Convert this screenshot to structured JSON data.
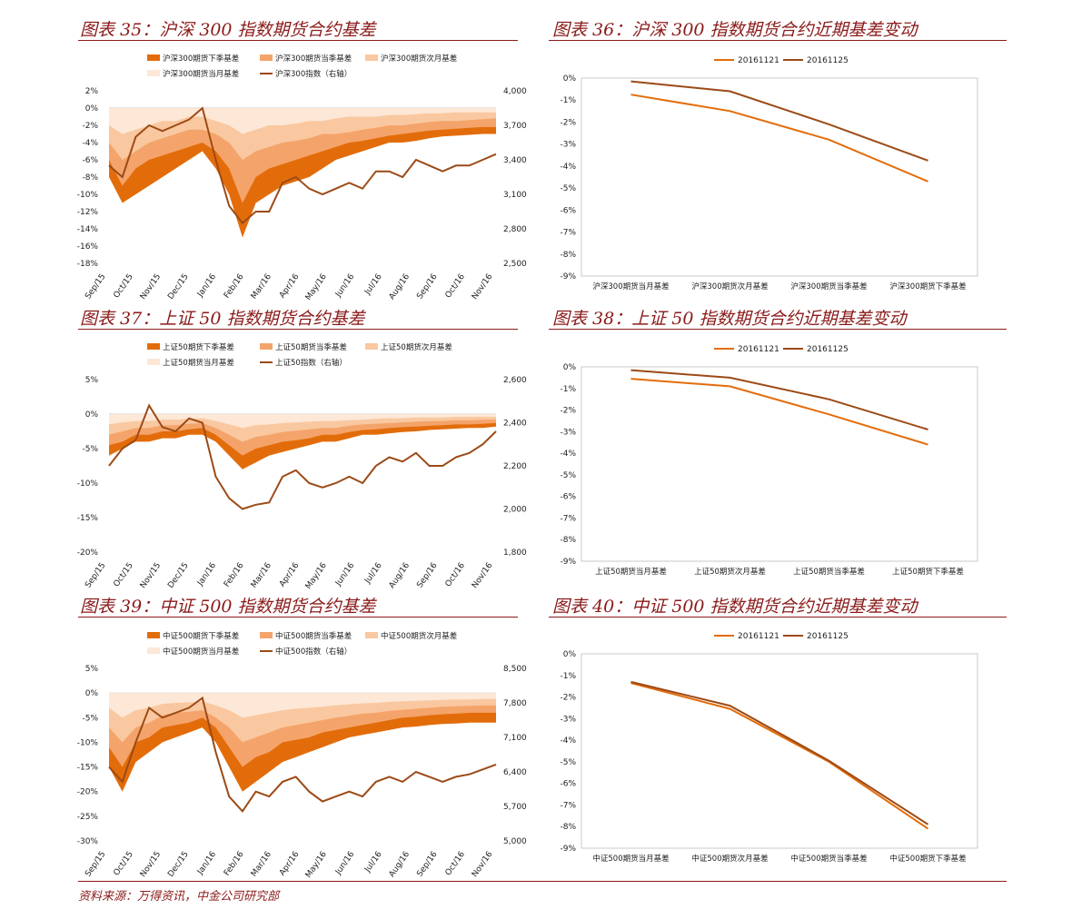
{
  "theme": {
    "title_color": "#8b1a1a",
    "band_colors": [
      "#e36c0a",
      "#f4a46a",
      "#f9c8a0",
      "#fde7d6"
    ],
    "index_color": "#9c4a16",
    "line1_color": "#e36c0a",
    "line2_color": "#9c4a16"
  },
  "source": "资料来源：万得资讯，中金公司研究部",
  "chart_data": [
    {
      "id": "c35",
      "type": "area",
      "title": "图表 35：沪深 300 指数期货合约基差",
      "legend": [
        "沪深300期货下季基差",
        "沪深300期货当季基差",
        "沪深300期货次月基差",
        "沪深300期货当月基差",
        "沪深300指数（右轴）"
      ],
      "x_ticks": [
        "Sep/15",
        "Oct/15",
        "Nov/15",
        "Dec/15",
        "Jan/16",
        "Feb/16",
        "Mar/16",
        "Apr/16",
        "May/16",
        "Jun/16",
        "Jul/16",
        "Aug/16",
        "Sep/16",
        "Oct/16",
        "Nov/16"
      ],
      "y_left": {
        "ticks": [
          "2%",
          "0%",
          "-2%",
          "-4%",
          "-6%",
          "-8%",
          "-10%",
          "-12%",
          "-14%",
          "-16%",
          "-18%"
        ],
        "range": [
          -18,
          2
        ]
      },
      "y_right": {
        "ticks": [
          "4,000",
          "3,700",
          "3,400",
          "3,100",
          "2,800",
          "2,500"
        ],
        "range": [
          2500,
          4000
        ]
      },
      "series": [
        {
          "name": "沪深300期货下季基差",
          "values": [
            -8,
            -11,
            -10,
            -9,
            -8,
            -7,
            -6,
            -5,
            -7,
            -10,
            -15,
            -11,
            -10,
            -9,
            -8.5,
            -8,
            -7,
            -6,
            -5.5,
            -5,
            -4.5,
            -4,
            -4,
            -3.8,
            -3.5,
            -3.3,
            -3.2,
            -3.1,
            -3,
            -3
          ]
        },
        {
          "name": "沪深300期货当季基差",
          "values": [
            -6,
            -9,
            -7,
            -6,
            -5.5,
            -5,
            -4.5,
            -4,
            -5,
            -7,
            -11,
            -8,
            -7,
            -6.5,
            -6,
            -5.5,
            -5,
            -4.5,
            -4,
            -3.8,
            -3.5,
            -3.2,
            -3,
            -2.8,
            -2.6,
            -2.5,
            -2.4,
            -2.3,
            -2.2,
            -2.2
          ]
        },
        {
          "name": "沪深300期货次月基差",
          "values": [
            -4,
            -6,
            -5,
            -4,
            -3.5,
            -3,
            -2.5,
            -2.5,
            -3,
            -4,
            -6,
            -5,
            -4.5,
            -4,
            -3.8,
            -3.5,
            -3,
            -3,
            -2.8,
            -2.5,
            -2.3,
            -2,
            -2,
            -1.8,
            -1.6,
            -1.5,
            -1.5,
            -1.4,
            -1.3,
            -1.2
          ]
        },
        {
          "name": "沪深300期货当月基差",
          "values": [
            -2,
            -3,
            -2.5,
            -2,
            -1.5,
            -1.5,
            -1,
            -1,
            -1.5,
            -2,
            -3,
            -2.5,
            -2,
            -2,
            -1.8,
            -1.5,
            -1.5,
            -1.2,
            -1,
            -1,
            -1,
            -0.8,
            -0.8,
            -0.7,
            -0.6,
            -0.6,
            -0.5,
            -0.5,
            -0.5,
            -0.5
          ]
        },
        {
          "name": "沪深300指数（右轴）",
          "values": [
            3350,
            3250,
            3600,
            3700,
            3650,
            3700,
            3750,
            3850,
            3400,
            3000,
            2850,
            2950,
            2950,
            3200,
            3250,
            3150,
            3100,
            3150,
            3200,
            3150,
            3300,
            3300,
            3250,
            3400,
            3350,
            3300,
            3350,
            3350,
            3400,
            3450
          ]
        }
      ]
    },
    {
      "id": "c36",
      "type": "line",
      "title": "图表 36：沪深 300 指数期货合约近期基差变动",
      "categories": [
        "沪深300期货当月基差",
        "沪深300期货次月基差",
        "沪深300期货当季基差",
        "沪深300期货下季基差"
      ],
      "y_ticks": [
        "0%",
        "-1%",
        "-2%",
        "-3%",
        "-4%",
        "-5%",
        "-6%",
        "-7%",
        "-8%",
        "-9%"
      ],
      "range": [
        -9,
        0
      ],
      "series": [
        {
          "name": "20161121",
          "values": [
            -0.75,
            -1.5,
            -2.8,
            -4.7
          ]
        },
        {
          "name": "20161125",
          "values": [
            -0.15,
            -0.6,
            -2.1,
            -3.75
          ]
        }
      ]
    },
    {
      "id": "c37",
      "type": "area",
      "title": "图表 37：上证 50 指数期货合约基差",
      "legend": [
        "上证50期货下季基差",
        "上证50期货当季基差",
        "上证50期货次月基差",
        "上证50期货当月基差",
        "上证50指数（右轴）"
      ],
      "x_ticks": [
        "Sep/15",
        "Oct/15",
        "Nov/15",
        "Dec/15",
        "Jan/16",
        "Feb/16",
        "Mar/16",
        "Apr/16",
        "May/16",
        "Jun/16",
        "Jul/16",
        "Aug/16",
        "Sep/16",
        "Oct/16",
        "Nov/16"
      ],
      "y_left": {
        "ticks": [
          "5%",
          "0%",
          "-5%",
          "-10%",
          "-15%",
          "-20%"
        ],
        "range": [
          -20,
          5
        ]
      },
      "y_right": {
        "ticks": [
          "2,600",
          "2,400",
          "2,200",
          "2,000",
          "1,800"
        ],
        "range": [
          1800,
          2600
        ]
      },
      "series": [
        {
          "name": "上证50期货下季基差",
          "values": [
            -6,
            -5,
            -4,
            -4,
            -3.5,
            -3.5,
            -3,
            -3,
            -4,
            -6,
            -8,
            -7,
            -6,
            -5.5,
            -5,
            -4.5,
            -4,
            -4,
            -3.5,
            -3,
            -3,
            -2.8,
            -2.6,
            -2.5,
            -2.3,
            -2.2,
            -2.1,
            -2,
            -2,
            -1.8
          ]
        },
        {
          "name": "上证50期货当季基差",
          "values": [
            -4.5,
            -4,
            -3,
            -3,
            -2.5,
            -2.5,
            -2.2,
            -2,
            -3,
            -4.5,
            -6,
            -5,
            -4.5,
            -4,
            -3.8,
            -3.5,
            -3,
            -3,
            -2.6,
            -2.3,
            -2.2,
            -2,
            -1.9,
            -1.8,
            -1.7,
            -1.6,
            -1.5,
            -1.5,
            -1.4,
            -1.3
          ]
        },
        {
          "name": "上证50期货次月基差",
          "values": [
            -3,
            -2.5,
            -2,
            -2,
            -1.6,
            -1.6,
            -1.4,
            -1.3,
            -2,
            -3,
            -4,
            -3.3,
            -3,
            -2.6,
            -2.4,
            -2.2,
            -2,
            -2,
            -1.7,
            -1.5,
            -1.4,
            -1.3,
            -1.2,
            -1.1,
            -1,
            -1,
            -0.9,
            -0.9,
            -0.8,
            -0.8
          ]
        },
        {
          "name": "上证50期货当月基差",
          "values": [
            -1.5,
            -1.2,
            -1,
            -1,
            -0.8,
            -0.8,
            -0.7,
            -0.6,
            -1,
            -1.5,
            -2,
            -1.6,
            -1.5,
            -1.3,
            -1.2,
            -1.1,
            -1,
            -1,
            -0.9,
            -0.8,
            -0.7,
            -0.6,
            -0.6,
            -0.5,
            -0.5,
            -0.5,
            -0.4,
            -0.4,
            -0.4,
            -0.4
          ]
        },
        {
          "name": "上证50指数（右轴）",
          "values": [
            2200,
            2280,
            2320,
            2480,
            2380,
            2360,
            2420,
            2400,
            2150,
            2050,
            2000,
            2020,
            2030,
            2150,
            2180,
            2120,
            2100,
            2120,
            2150,
            2120,
            2200,
            2240,
            2220,
            2260,
            2200,
            2200,
            2240,
            2260,
            2300,
            2360
          ]
        }
      ]
    },
    {
      "id": "c38",
      "type": "line",
      "title": "图表 38：上证 50 指数期货合约近期基差变动",
      "categories": [
        "上证50期货当月基差",
        "上证50期货次月基差",
        "上证50期货当季基差",
        "上证50期货下季基差"
      ],
      "y_ticks": [
        "0%",
        "-1%",
        "-2%",
        "-3%",
        "-4%",
        "-5%",
        "-6%",
        "-7%",
        "-8%",
        "-9%"
      ],
      "range": [
        -9,
        0
      ],
      "series": [
        {
          "name": "20161121",
          "values": [
            -0.55,
            -0.9,
            -2.2,
            -3.6
          ]
        },
        {
          "name": "20161125",
          "values": [
            -0.15,
            -0.5,
            -1.5,
            -2.9
          ]
        }
      ]
    },
    {
      "id": "c39",
      "type": "area",
      "title": "图表 39：中证 500 指数期货合约基差",
      "legend": [
        "中证500期货下季基差",
        "中证500期货当季基差",
        "中证500期货次月基差",
        "中证500期货当月基差",
        "中证500指数（右轴）"
      ],
      "x_ticks": [
        "Sep/15",
        "Oct/15",
        "Nov/15",
        "Dec/15",
        "Jan/16",
        "Feb/16",
        "Mar/16",
        "Apr/16",
        "May/16",
        "Jun/16",
        "Jul/16",
        "Aug/16",
        "Sep/16",
        "Oct/16",
        "Nov/16"
      ],
      "y_left": {
        "ticks": [
          "5%",
          "0%",
          "-5%",
          "-10%",
          "-15%",
          "-20%",
          "-25%",
          "-30%"
        ],
        "range": [
          -30,
          5
        ]
      },
      "y_right": {
        "ticks": [
          "8,500",
          "7,800",
          "7,100",
          "6,400",
          "5,700",
          "5,000"
        ],
        "range": [
          5000,
          8500
        ]
      },
      "series": [
        {
          "name": "中证500期货下季基差",
          "values": [
            -15,
            -20,
            -14,
            -12,
            -10,
            -9,
            -8,
            -7,
            -10,
            -15,
            -20,
            -18,
            -16,
            -14,
            -13,
            -12,
            -11,
            -10,
            -9,
            -8.5,
            -8,
            -7.5,
            -7,
            -6.8,
            -6.5,
            -6.3,
            -6.2,
            -6,
            -6,
            -6
          ]
        },
        {
          "name": "中证500期货当季基差",
          "values": [
            -11,
            -15,
            -10,
            -9,
            -7,
            -6.5,
            -6,
            -5,
            -7,
            -11,
            -15,
            -13,
            -12,
            -10,
            -9.5,
            -9,
            -8,
            -7.5,
            -7,
            -6.5,
            -6,
            -5.5,
            -5,
            -4.8,
            -4.5,
            -4.3,
            -4.2,
            -4,
            -4,
            -4
          ]
        },
        {
          "name": "中证500期货次月基差",
          "values": [
            -7,
            -10,
            -7,
            -6,
            -4.5,
            -4,
            -3.8,
            -3.5,
            -5,
            -7,
            -10,
            -9,
            -8,
            -7,
            -6.5,
            -6,
            -5.5,
            -5,
            -4.6,
            -4.2,
            -4,
            -3.6,
            -3.4,
            -3.2,
            -3,
            -2.8,
            -2.7,
            -2.6,
            -2.5,
            -2.5
          ]
        },
        {
          "name": "中证500期货当月基差",
          "values": [
            -3,
            -5,
            -3.5,
            -3,
            -2.2,
            -2,
            -1.9,
            -1.7,
            -2.5,
            -3.5,
            -5,
            -4.5,
            -4,
            -3.5,
            -3.2,
            -3,
            -2.8,
            -2.5,
            -2.3,
            -2.1,
            -2,
            -1.8,
            -1.7,
            -1.6,
            -1.5,
            -1.4,
            -1.3,
            -1.3,
            -1.2,
            -1.2
          ]
        },
        {
          "name": "中证500指数（右轴）",
          "values": [
            6500,
            6200,
            7000,
            7700,
            7500,
            7600,
            7700,
            7900,
            6800,
            5900,
            5600,
            6000,
            5900,
            6200,
            6300,
            6000,
            5800,
            5900,
            6000,
            5900,
            6200,
            6300,
            6200,
            6400,
            6300,
            6200,
            6300,
            6350,
            6450,
            6550
          ]
        }
      ]
    },
    {
      "id": "c40",
      "type": "line",
      "title": "图表 40：中证 500 指数期货合约近期基差变动",
      "categories": [
        "中证500期货当月基差",
        "中证500期货次月基差",
        "中证500期货当季基差",
        "中证500期货下季基差"
      ],
      "y_ticks": [
        "0%",
        "-1%",
        "-2%",
        "-3%",
        "-4%",
        "-5%",
        "-6%",
        "-7%",
        "-8%",
        "-9%"
      ],
      "range": [
        -9,
        0
      ],
      "series": [
        {
          "name": "20161121",
          "values": [
            -1.35,
            -2.55,
            -5.0,
            -8.1
          ]
        },
        {
          "name": "20161125",
          "values": [
            -1.3,
            -2.4,
            -4.95,
            -7.9
          ]
        }
      ]
    }
  ]
}
